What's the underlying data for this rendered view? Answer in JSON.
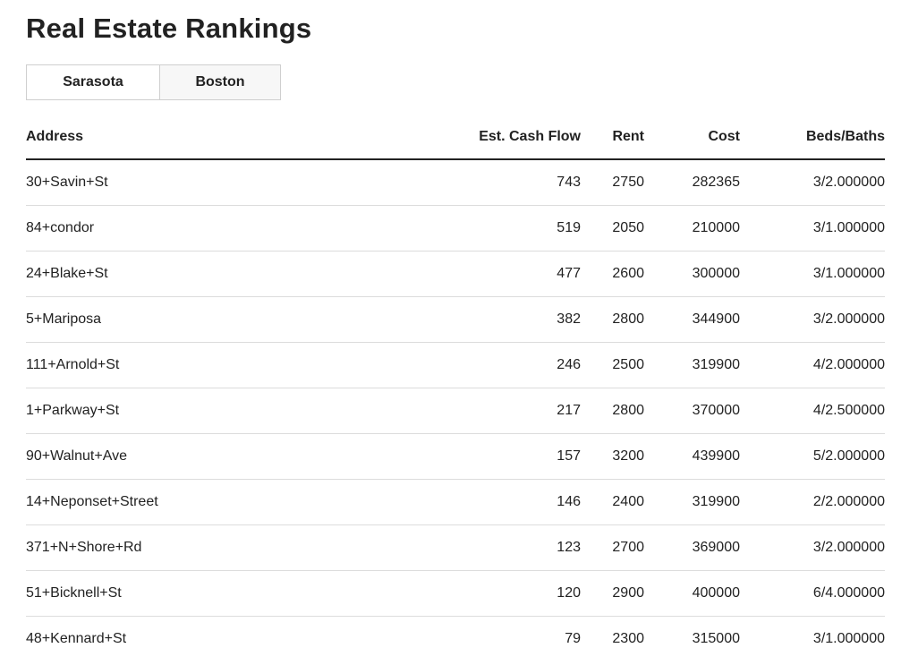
{
  "page": {
    "title": "Real Estate Rankings"
  },
  "tabs": [
    {
      "label": "Sarasota"
    },
    {
      "label": "Boston"
    }
  ],
  "table": {
    "headers": {
      "address": "Address",
      "cash_flow": "Est. Cash Flow",
      "rent": "Rent",
      "cost": "Cost",
      "beds_baths": "Beds/Baths"
    },
    "rows": [
      {
        "address": "30+Savin+St",
        "cash_flow": "743",
        "rent": "2750",
        "cost": "282365",
        "beds_baths": "3/2.000000"
      },
      {
        "address": "84+condor",
        "cash_flow": "519",
        "rent": "2050",
        "cost": "210000",
        "beds_baths": "3/1.000000"
      },
      {
        "address": "24+Blake+St",
        "cash_flow": "477",
        "rent": "2600",
        "cost": "300000",
        "beds_baths": "3/1.000000"
      },
      {
        "address": "5+Mariposa",
        "cash_flow": "382",
        "rent": "2800",
        "cost": "344900",
        "beds_baths": "3/2.000000"
      },
      {
        "address": "111+Arnold+St",
        "cash_flow": "246",
        "rent": "2500",
        "cost": "319900",
        "beds_baths": "4/2.000000"
      },
      {
        "address": "1+Parkway+St",
        "cash_flow": "217",
        "rent": "2800",
        "cost": "370000",
        "beds_baths": "4/2.500000"
      },
      {
        "address": "90+Walnut+Ave",
        "cash_flow": "157",
        "rent": "3200",
        "cost": "439900",
        "beds_baths": "5/2.000000"
      },
      {
        "address": "14+Neponset+Street",
        "cash_flow": "146",
        "rent": "2400",
        "cost": "319900",
        "beds_baths": "2/2.000000"
      },
      {
        "address": "371+N+Shore+Rd",
        "cash_flow": "123",
        "rent": "2700",
        "cost": "369000",
        "beds_baths": "3/2.000000"
      },
      {
        "address": "51+Bicknell+St",
        "cash_flow": "120",
        "rent": "2900",
        "cost": "400000",
        "beds_baths": "6/4.000000"
      },
      {
        "address": "48+Kennard+St",
        "cash_flow": "79",
        "rent": "2300",
        "cost": "315000",
        "beds_baths": "3/1.000000"
      }
    ]
  }
}
